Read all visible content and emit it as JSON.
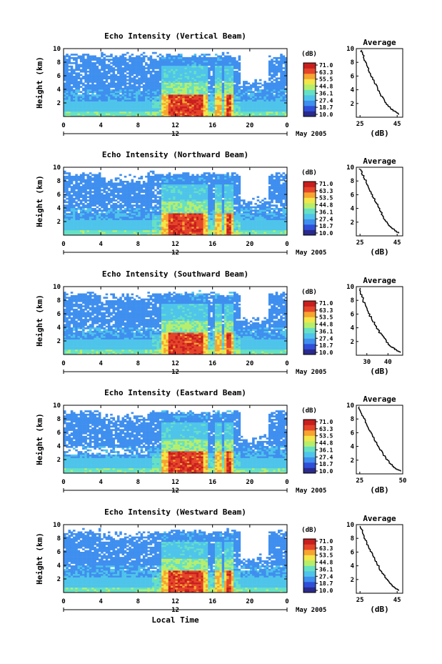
{
  "chart_data": [
    {
      "type": "heatmap",
      "title": "Echo Intensity (Vertical Beam)",
      "ylabel": "Height (km)",
      "x_ticks": [
        "0",
        "4",
        "8",
        "12",
        "16",
        "20",
        "0"
      ],
      "xlim": [
        0,
        24
      ],
      "ylim": [
        0,
        10
      ],
      "y_ticks": [
        "2",
        "4",
        "6",
        "8",
        "10"
      ],
      "day_label": "12",
      "date_label": "May 2005",
      "colorbar": {
        "unit": "(dB)",
        "levels": [
          "71.0",
          "63.3",
          "55.5",
          "44.8",
          "36.1",
          "27.4",
          "18.7",
          "10.0"
        ]
      },
      "profile": {
        "type": "line",
        "title": "Average",
        "xlabel": "(dB)",
        "x_ticks": [
          "25",
          "45"
        ],
        "xlim": [
          23,
          48
        ],
        "ylim": [
          0,
          10
        ],
        "y_ticks": [
          "2",
          "4",
          "6",
          "8",
          "10"
        ],
        "points": [
          [
            46,
            0.4
          ],
          [
            44,
            0.8
          ],
          [
            42,
            1.2
          ],
          [
            40,
            1.8
          ],
          [
            38,
            2.4
          ],
          [
            36.5,
            3.2
          ],
          [
            35,
            4.0
          ],
          [
            33.5,
            4.8
          ],
          [
            32,
            5.6
          ],
          [
            30.5,
            6.4
          ],
          [
            29,
            7.4
          ],
          [
            27.5,
            8.4
          ],
          [
            26.5,
            9.2
          ],
          [
            25.5,
            9.8
          ]
        ]
      }
    },
    {
      "type": "heatmap",
      "title": "Echo Intensity (Northward Beam)",
      "ylabel": "Height (km)",
      "x_ticks": [
        "0",
        "4",
        "8",
        "12",
        "16",
        "20",
        "0"
      ],
      "xlim": [
        0,
        24
      ],
      "ylim": [
        0,
        10
      ],
      "y_ticks": [
        "2",
        "4",
        "6",
        "8",
        "10"
      ],
      "day_label": "12",
      "date_label": "May 2005",
      "colorbar": {
        "unit": "(dB)",
        "levels": [
          "71.0",
          "63.3",
          "53.5",
          "44.8",
          "36.1",
          "27.4",
          "18.7",
          "10.0"
        ]
      },
      "profile": {
        "type": "line",
        "title": "Average",
        "xlabel": "(dB)",
        "x_ticks": [
          "25",
          "45"
        ],
        "xlim": [
          23,
          48
        ],
        "ylim": [
          0,
          10
        ],
        "y_ticks": [
          "2",
          "4",
          "6",
          "8",
          "10"
        ],
        "points": [
          [
            46,
            0.4
          ],
          [
            44,
            0.8
          ],
          [
            42,
            1.2
          ],
          [
            40,
            1.8
          ],
          [
            38,
            2.6
          ],
          [
            36.5,
            3.4
          ],
          [
            35,
            4.2
          ],
          [
            33.5,
            5.0
          ],
          [
            32,
            5.8
          ],
          [
            30.5,
            6.6
          ],
          [
            29,
            7.6
          ],
          [
            27,
            8.6
          ],
          [
            26,
            9.3
          ],
          [
            25,
            9.8
          ]
        ]
      }
    },
    {
      "type": "heatmap",
      "title": "Echo Intensity (Southward Beam)",
      "ylabel": "Height (km)",
      "x_ticks": [
        "0",
        "4",
        "8",
        "12",
        "16",
        "20",
        "0"
      ],
      "xlim": [
        0,
        24
      ],
      "ylim": [
        0,
        10
      ],
      "y_ticks": [
        "2",
        "4",
        "6",
        "8",
        "10"
      ],
      "day_label": "12",
      "date_label": "May 2005",
      "colorbar": {
        "unit": "(dB)",
        "levels": [
          "71.0",
          "63.3",
          "53.5",
          "44.8",
          "36.1",
          "27.4",
          "18.7",
          "10.0"
        ]
      },
      "profile": {
        "type": "line",
        "title": "Average",
        "xlabel": "(dB)",
        "x_ticks": [
          "30",
          "40"
        ],
        "xlim": [
          25,
          47
        ],
        "ylim": [
          0,
          10
        ],
        "y_ticks": [
          "2",
          "4",
          "6",
          "8",
          "10"
        ],
        "points": [
          [
            46,
            0.4
          ],
          [
            44,
            0.8
          ],
          [
            42,
            1.2
          ],
          [
            40,
            1.8
          ],
          [
            38,
            2.6
          ],
          [
            36,
            3.4
          ],
          [
            34.5,
            4.2
          ],
          [
            33,
            5.0
          ],
          [
            31.5,
            5.8
          ],
          [
            30,
            6.6
          ],
          [
            29,
            7.4
          ],
          [
            28,
            8.4
          ],
          [
            27,
            9.2
          ],
          [
            26.5,
            9.8
          ]
        ]
      }
    },
    {
      "type": "heatmap",
      "title": "Echo Intensity (Eastward Beam)",
      "ylabel": "Height (km)",
      "x_ticks": [
        "0",
        "4",
        "8",
        "12",
        "16",
        "20",
        "0"
      ],
      "xlim": [
        0,
        24
      ],
      "ylim": [
        0,
        10
      ],
      "y_ticks": [
        "2",
        "4",
        "6",
        "8",
        "10"
      ],
      "day_label": "12",
      "date_label": "May 2005",
      "colorbar": {
        "unit": "(dB)",
        "levels": [
          "71.0",
          "63.3",
          "53.5",
          "44.8",
          "36.1",
          "27.4",
          "18.7",
          "10.0"
        ]
      },
      "profile": {
        "type": "line",
        "title": "Average",
        "xlabel": "(dB)",
        "x_ticks": [
          "25",
          "50"
        ],
        "xlim": [
          23,
          50
        ],
        "ylim": [
          0,
          10
        ],
        "y_ticks": [
          "2",
          "4",
          "6",
          "8",
          "10"
        ],
        "points": [
          [
            49,
            0.4
          ],
          [
            46,
            0.8
          ],
          [
            44,
            1.2
          ],
          [
            42,
            1.8
          ],
          [
            40,
            2.4
          ],
          [
            38,
            3.2
          ],
          [
            36,
            4.0
          ],
          [
            34,
            4.8
          ],
          [
            32,
            5.8
          ],
          [
            30,
            6.8
          ],
          [
            28.5,
            7.6
          ],
          [
            27,
            8.4
          ],
          [
            25.5,
            9.2
          ],
          [
            24.5,
            9.8
          ]
        ]
      }
    },
    {
      "type": "heatmap",
      "title": "Echo Intensity (Westward Beam)",
      "ylabel": "Height (km)",
      "x_ticks": [
        "0",
        "4",
        "8",
        "12",
        "16",
        "20",
        "0"
      ],
      "xlim": [
        0,
        24
      ],
      "ylim": [
        0,
        10
      ],
      "y_ticks": [
        "2",
        "4",
        "6",
        "8",
        "10"
      ],
      "day_label": "12",
      "date_label": "May 2005",
      "x_axis_label": "Local Time",
      "colorbar": {
        "unit": "(dB)",
        "levels": [
          "71.0",
          "63.3",
          "53.5",
          "44.8",
          "36.1",
          "27.4",
          "18.7",
          "10.0"
        ]
      },
      "profile": {
        "type": "line",
        "title": "Average",
        "xlabel": "(dB)",
        "x_ticks": [
          "25",
          "45"
        ],
        "xlim": [
          23,
          48
        ],
        "ylim": [
          0,
          10
        ],
        "y_ticks": [
          "2",
          "4",
          "6",
          "8",
          "10"
        ],
        "points": [
          [
            46,
            0.4
          ],
          [
            44,
            0.8
          ],
          [
            42,
            1.2
          ],
          [
            40,
            1.8
          ],
          [
            38,
            2.6
          ],
          [
            36,
            3.4
          ],
          [
            34.5,
            4.2
          ],
          [
            33,
            5.0
          ],
          [
            31.5,
            5.8
          ],
          [
            30,
            6.6
          ],
          [
            28.5,
            7.4
          ],
          [
            27,
            8.4
          ],
          [
            26,
            9.2
          ],
          [
            25,
            9.8
          ]
        ]
      }
    }
  ],
  "colors": {
    "scale": [
      "#2a2a8c",
      "#2f4fd8",
      "#3f8fef",
      "#4fc4ea",
      "#66e0c4",
      "#b6ee6c",
      "#f2e64a",
      "#f7a430",
      "#e4442a",
      "#c81e1e"
    ],
    "blank": "#ffffff",
    "axis": "#000000"
  }
}
